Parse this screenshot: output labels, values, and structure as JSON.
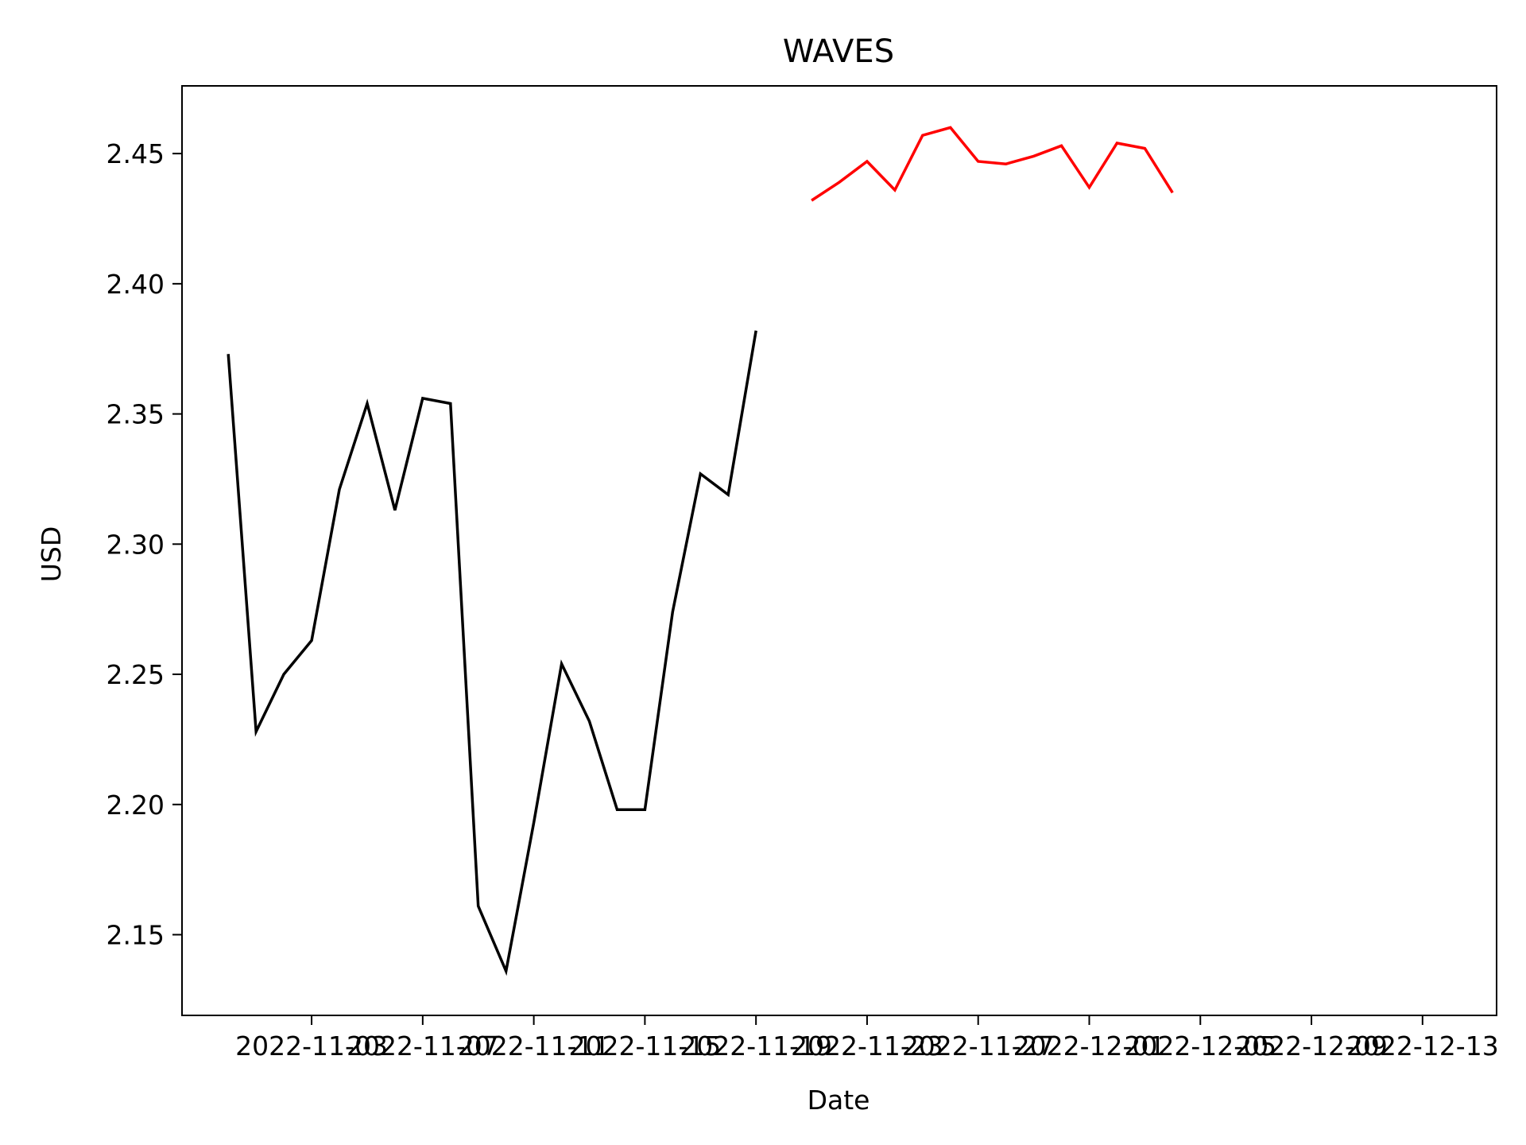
{
  "chart_data": {
    "type": "line",
    "title": "WAVES",
    "xlabel": "Date",
    "ylabel": "USD",
    "xlim": [
      "2022-10-29T08:00",
      "2022-12-15T16:00"
    ],
    "ylim": [
      2.119,
      2.476
    ],
    "x_ticks": [
      "2022-11-03",
      "2022-11-07",
      "2022-11-11",
      "2022-11-15",
      "2022-11-19",
      "2022-11-23",
      "2022-11-27",
      "2022-12-01",
      "2022-12-05",
      "2022-12-09",
      "2022-12-13"
    ],
    "x_tick_labels": [
      "2022-11-03",
      "2022-11-07",
      "2022-11-11",
      "2022-11-15",
      "2022-11-19",
      "2022-11-23",
      "2022-11-27",
      "2022-12-01",
      "2022-12-05",
      "2022-12-09",
      "2022-12-13"
    ],
    "y_ticks": [
      2.15,
      2.2,
      2.25,
      2.3,
      2.35,
      2.4,
      2.45
    ],
    "y_tick_labels": [
      "2.15",
      "2.20",
      "2.25",
      "2.30",
      "2.35",
      "2.40",
      "2.45"
    ],
    "grid": false,
    "series": [
      {
        "color": "#000000",
        "x": [
          "2022-10-31",
          "2022-11-01",
          "2022-11-02",
          "2022-11-03",
          "2022-11-04",
          "2022-11-05",
          "2022-11-06",
          "2022-11-07",
          "2022-11-08",
          "2022-11-09",
          "2022-11-10",
          "2022-11-11",
          "2022-11-12",
          "2022-11-13",
          "2022-11-14",
          "2022-11-15",
          "2022-11-16",
          "2022-11-17",
          "2022-11-18",
          "2022-11-19",
          "2022-11-20"
        ],
        "values": [
          2.373,
          2.228,
          2.25,
          2.263,
          2.321,
          2.354,
          2.313,
          2.356,
          2.354,
          2.161,
          2.136,
          2.193,
          2.254,
          2.232,
          2.198,
          2.198,
          2.274,
          2.327,
          2.319,
          2.382,
          null
        ]
      },
      {
        "color": "#ff0000",
        "x": [
          "2022-11-21",
          "2022-11-22",
          "2022-11-23",
          "2022-11-24",
          "2022-11-25",
          "2022-11-26",
          "2022-11-27",
          "2022-11-28",
          "2022-11-29",
          "2022-11-30",
          "2022-12-01",
          "2022-12-02",
          "2022-12-03",
          "2022-12-04"
        ],
        "values": [
          2.432,
          2.439,
          2.447,
          2.436,
          2.457,
          2.46,
          2.447,
          2.446,
          2.449,
          2.453,
          2.437,
          2.454,
          2.452,
          2.435
        ]
      }
    ]
  }
}
